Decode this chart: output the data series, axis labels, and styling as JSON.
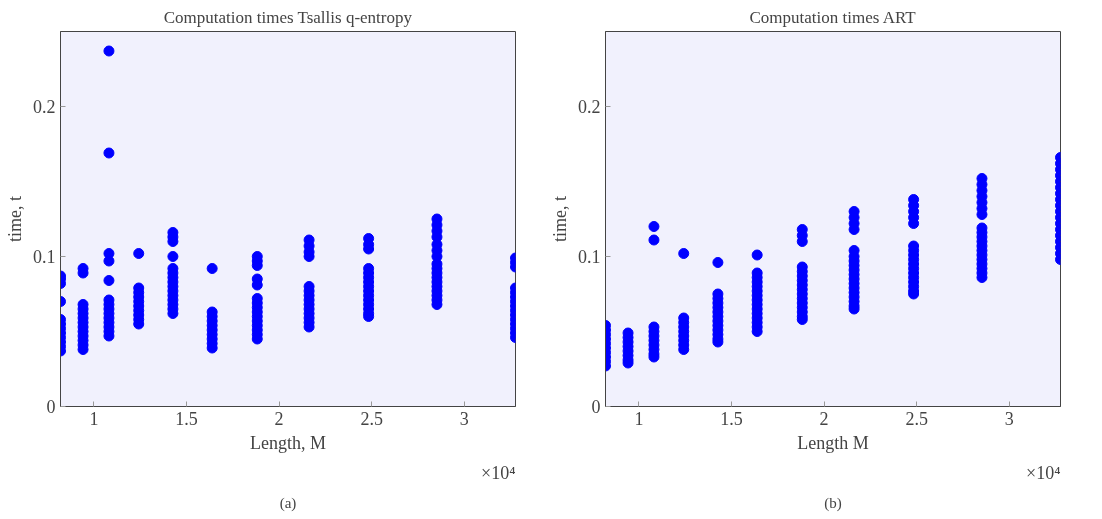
{
  "chart_data": [
    {
      "type": "scatter",
      "title": "Computation times Tsallis q-entropy",
      "xlabel": "Length, M",
      "ylabel": "time, t",
      "annotations": [
        "×10⁴",
        "(a)"
      ],
      "marker": "circle",
      "grid": false,
      "xlim": [
        0.8192,
        3.2768
      ],
      "xticks": [
        1,
        1.5,
        2,
        2.5,
        3
      ],
      "ylim": [
        0,
        0.25
      ],
      "yticks": [
        0,
        0.1,
        0.2
      ],
      "series": [
        {
          "color": "#0000ff",
          "x": [
            0.8192,
            0.8192,
            0.8192,
            0.8192,
            0.8192,
            0.8192,
            0.8192,
            0.8192,
            0.8192,
            0.8192,
            0.8192,
            0.8192,
            0.941,
            0.941,
            0.941,
            0.941,
            0.941,
            0.941,
            0.941,
            0.941,
            0.941,
            0.941,
            0.941,
            0.941,
            0.941,
            1.0809,
            1.0809,
            1.0809,
            1.0809,
            1.0809,
            1.0809,
            1.0809,
            1.0809,
            1.0809,
            1.0809,
            1.0809,
            1.0809,
            1.0809,
            1.0809,
            1.2417,
            1.2417,
            1.2417,
            1.2417,
            1.2417,
            1.2417,
            1.2417,
            1.2417,
            1.2417,
            1.2417,
            1.4263,
            1.4263,
            1.4263,
            1.4263,
            1.4263,
            1.4263,
            1.4263,
            1.4263,
            1.4263,
            1.4263,
            1.4263,
            1.4263,
            1.4263,
            1.4263,
            1.4263,
            1.6384,
            1.6384,
            1.6384,
            1.6384,
            1.6384,
            1.6384,
            1.6384,
            1.6384,
            1.6384,
            1.6384,
            1.882,
            1.882,
            1.882,
            1.882,
            1.882,
            1.882,
            1.882,
            1.882,
            1.882,
            1.882,
            1.882,
            1.882,
            1.882,
            1.882,
            1.882,
            2.1619,
            2.1619,
            2.1619,
            2.1619,
            2.1619,
            2.1619,
            2.1619,
            2.1619,
            2.1619,
            2.1619,
            2.1619,
            2.1619,
            2.1619,
            2.1619,
            2.4834,
            2.4834,
            2.4834,
            2.4834,
            2.4834,
            2.4834,
            2.4834,
            2.4834,
            2.4834,
            2.4834,
            2.4834,
            2.4834,
            2.4834,
            2.4834,
            2.4834,
            2.8526,
            2.8526,
            2.8526,
            2.8526,
            2.8526,
            2.8526,
            2.8526,
            2.8526,
            2.8526,
            2.8526,
            2.8526,
            2.8526,
            2.8526,
            2.8526,
            2.8526,
            2.8526,
            2.8526,
            3.2768,
            3.2768,
            3.2768,
            3.2768,
            3.2768,
            3.2768,
            3.2768,
            3.2768,
            3.2768,
            3.2768,
            3.2768,
            3.2768,
            3.2768,
            3.2768,
            3.2768
          ],
          "values": [
            0.087,
            0.085,
            0.082,
            0.07,
            0.058,
            0.055,
            0.052,
            0.049,
            0.046,
            0.043,
            0.04,
            0.037,
            0.092,
            0.089,
            0.068,
            0.065,
            0.062,
            0.059,
            0.056,
            0.053,
            0.05,
            0.047,
            0.044,
            0.041,
            0.038,
            0.237,
            0.169,
            0.102,
            0.097,
            0.084,
            0.071,
            0.068,
            0.065,
            0.062,
            0.059,
            0.056,
            0.053,
            0.05,
            0.047,
            0.102,
            0.079,
            0.076,
            0.073,
            0.07,
            0.067,
            0.064,
            0.061,
            0.058,
            0.055,
            0.116,
            0.113,
            0.11,
            0.1,
            0.092,
            0.089,
            0.086,
            0.083,
            0.08,
            0.077,
            0.074,
            0.071,
            0.068,
            0.065,
            0.062,
            0.092,
            0.063,
            0.06,
            0.057,
            0.054,
            0.051,
            0.048,
            0.045,
            0.042,
            0.039,
            0.1,
            0.097,
            0.094,
            0.085,
            0.081,
            0.072,
            0.069,
            0.066,
            0.063,
            0.06,
            0.057,
            0.054,
            0.051,
            0.048,
            0.045,
            0.111,
            0.107,
            0.103,
            0.1,
            0.08,
            0.077,
            0.074,
            0.071,
            0.068,
            0.065,
            0.062,
            0.059,
            0.056,
            0.053,
            0.112,
            0.108,
            0.105,
            0.092,
            0.089,
            0.086,
            0.083,
            0.08,
            0.077,
            0.074,
            0.071,
            0.068,
            0.065,
            0.062,
            0.06,
            0.125,
            0.121,
            0.117,
            0.113,
            0.108,
            0.104,
            0.1,
            0.095,
            0.092,
            0.089,
            0.086,
            0.083,
            0.08,
            0.077,
            0.074,
            0.071,
            0.068,
            0.099,
            0.096,
            0.093,
            0.079,
            0.076,
            0.073,
            0.07,
            0.067,
            0.064,
            0.061,
            0.058,
            0.055,
            0.052,
            0.049,
            0.046
          ]
        }
      ]
    },
    {
      "type": "scatter",
      "title": "Computation times ART",
      "xlabel": "Length M",
      "ylabel": "time, t",
      "annotations": [
        "×10⁴",
        "(b)"
      ],
      "marker": "circle",
      "grid": false,
      "xlim": [
        0.8192,
        3.2768
      ],
      "xticks": [
        1,
        1.5,
        2,
        2.5,
        3
      ],
      "ylim": [
        0,
        0.25
      ],
      "yticks": [
        0,
        0.1,
        0.2
      ],
      "series": [
        {
          "color": "#0000ff",
          "x": [
            0.8192,
            0.8192,
            0.8192,
            0.8192,
            0.8192,
            0.8192,
            0.8192,
            0.8192,
            0.8192,
            0.8192,
            0.941,
            0.941,
            0.941,
            0.941,
            0.941,
            0.941,
            0.941,
            0.941,
            1.0809,
            1.0809,
            1.0809,
            1.0809,
            1.0809,
            1.0809,
            1.0809,
            1.0809,
            1.0809,
            1.0809,
            1.2417,
            1.2417,
            1.2417,
            1.2417,
            1.2417,
            1.2417,
            1.2417,
            1.2417,
            1.2417,
            1.4263,
            1.4263,
            1.4263,
            1.4263,
            1.4263,
            1.4263,
            1.4263,
            1.4263,
            1.4263,
            1.4263,
            1.4263,
            1.4263,
            1.4263,
            1.6384,
            1.6384,
            1.6384,
            1.6384,
            1.6384,
            1.6384,
            1.6384,
            1.6384,
            1.6384,
            1.6384,
            1.6384,
            1.6384,
            1.6384,
            1.6384,
            1.6384,
            1.882,
            1.882,
            1.882,
            1.882,
            1.882,
            1.882,
            1.882,
            1.882,
            1.882,
            1.882,
            1.882,
            1.882,
            1.882,
            1.882,
            1.882,
            1.882,
            2.1619,
            2.1619,
            2.1619,
            2.1619,
            2.1619,
            2.1619,
            2.1619,
            2.1619,
            2.1619,
            2.1619,
            2.1619,
            2.1619,
            2.1619,
            2.1619,
            2.1619,
            2.1619,
            2.1619,
            2.1619,
            2.4834,
            2.4834,
            2.4834,
            2.4834,
            2.4834,
            2.4834,
            2.4834,
            2.4834,
            2.4834,
            2.4834,
            2.4834,
            2.4834,
            2.4834,
            2.4834,
            2.4834,
            2.4834,
            2.4834,
            2.8526,
            2.8526,
            2.8526,
            2.8526,
            2.8526,
            2.8526,
            2.8526,
            2.8526,
            2.8526,
            2.8526,
            2.8526,
            2.8526,
            2.8526,
            2.8526,
            2.8526,
            2.8526,
            2.8526,
            2.8526,
            2.8526,
            3.2768,
            3.2768,
            3.2768,
            3.2768,
            3.2768,
            3.2768,
            3.2768,
            3.2768,
            3.2768,
            3.2768,
            3.2768,
            3.2768,
            3.2768,
            3.2768,
            3.2768,
            3.2768,
            3.2768,
            3.2768
          ],
          "values": [
            0.054,
            0.051,
            0.048,
            0.045,
            0.042,
            0.039,
            0.036,
            0.033,
            0.03,
            0.027,
            0.049,
            0.046,
            0.043,
            0.04,
            0.037,
            0.034,
            0.031,
            0.029,
            0.12,
            0.111,
            0.053,
            0.05,
            0.047,
            0.044,
            0.041,
            0.038,
            0.035,
            0.033,
            0.102,
            0.059,
            0.056,
            0.053,
            0.05,
            0.047,
            0.044,
            0.041,
            0.038,
            0.096,
            0.075,
            0.072,
            0.069,
            0.066,
            0.063,
            0.06,
            0.057,
            0.054,
            0.051,
            0.048,
            0.045,
            0.043,
            0.101,
            0.089,
            0.086,
            0.083,
            0.08,
            0.077,
            0.074,
            0.071,
            0.068,
            0.065,
            0.062,
            0.059,
            0.056,
            0.053,
            0.05,
            0.118,
            0.114,
            0.11,
            0.093,
            0.09,
            0.087,
            0.084,
            0.081,
            0.078,
            0.075,
            0.072,
            0.069,
            0.066,
            0.063,
            0.06,
            0.058,
            0.13,
            0.126,
            0.122,
            0.118,
            0.104,
            0.1,
            0.097,
            0.094,
            0.091,
            0.088,
            0.085,
            0.082,
            0.079,
            0.076,
            0.073,
            0.07,
            0.067,
            0.065,
            0.138,
            0.134,
            0.13,
            0.126,
            0.122,
            0.107,
            0.104,
            0.101,
            0.098,
            0.095,
            0.092,
            0.089,
            0.086,
            0.083,
            0.08,
            0.077,
            0.075,
            0.152,
            0.148,
            0.144,
            0.14,
            0.136,
            0.132,
            0.128,
            0.119,
            0.116,
            0.113,
            0.11,
            0.107,
            0.104,
            0.101,
            0.098,
            0.095,
            0.092,
            0.089,
            0.086,
            0.166,
            0.162,
            0.158,
            0.154,
            0.15,
            0.146,
            0.142,
            0.138,
            0.134,
            0.13,
            0.126,
            0.122,
            0.118,
            0.114,
            0.11,
            0.106,
            0.102,
            0.098
          ]
        }
      ]
    }
  ]
}
